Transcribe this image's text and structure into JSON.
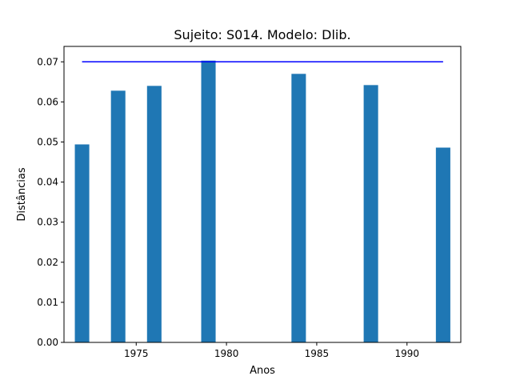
{
  "chart_data": {
    "type": "bar",
    "title": "Sujeito: S014. Modelo: Dlib.",
    "xlabel": "Anos",
    "ylabel": "Distâncias",
    "x": [
      1972,
      1974,
      1976,
      1979,
      1984,
      1988,
      1992
    ],
    "values": [
      0.0494,
      0.0628,
      0.064,
      0.0703,
      0.067,
      0.0642,
      0.0486
    ],
    "bar_color": "#1f77b4",
    "bar_width_years": 0.8,
    "threshold_line": {
      "y": 0.07,
      "x_start": 1972,
      "x_end": 1992,
      "color": "#0000ff"
    },
    "xlim": [
      1971.0,
      1992.98
    ],
    "ylim": [
      0,
      0.07385
    ],
    "xticks": [
      1975,
      1980,
      1985,
      1990
    ],
    "xtick_labels": [
      "1975",
      "1980",
      "1985",
      "1990"
    ],
    "yticks": [
      0.0,
      0.01,
      0.02,
      0.03,
      0.04,
      0.05,
      0.06,
      0.07
    ],
    "ytick_labels": [
      "0.00",
      "0.01",
      "0.02",
      "0.03",
      "0.04",
      "0.05",
      "0.06",
      "0.07"
    ],
    "grid": false,
    "legend": "none"
  }
}
